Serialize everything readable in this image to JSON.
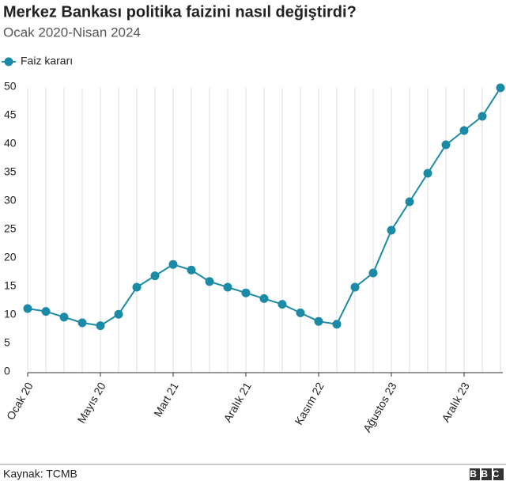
{
  "chart_data": {
    "type": "line",
    "title": "Merkez Bankası politika faizini nasıl değiştirdi?",
    "subtitle": "Ocak 2020-Nisan 2024",
    "source": "Kaynak: TCMB",
    "logo": "BBC",
    "categories": [
      "Ocak 20",
      null,
      null,
      null,
      "Mayıs 20",
      null,
      null,
      null,
      "Mart 21",
      null,
      null,
      null,
      "Aralık 21",
      null,
      null,
      null,
      "Kasım 22",
      null,
      null,
      null,
      "Ağustos 23",
      null,
      null,
      null,
      "Aralık 23",
      null,
      null
    ],
    "series": [
      {
        "name": "Faiz kararı",
        "color": "#1b8aa6",
        "values": [
          11.25,
          10.75,
          9.75,
          8.75,
          8.25,
          10.25,
          15,
          17,
          19,
          18,
          16,
          15,
          14,
          13,
          12,
          10.5,
          9,
          8.5,
          15,
          17.5,
          25,
          30,
          35,
          40,
          42.5,
          45,
          50
        ]
      }
    ],
    "ylim": [
      0,
      50
    ],
    "yticks": [
      0,
      5,
      10,
      15,
      20,
      25,
      30,
      35,
      40,
      45,
      50
    ],
    "grid": true,
    "legend": "top-left"
  }
}
